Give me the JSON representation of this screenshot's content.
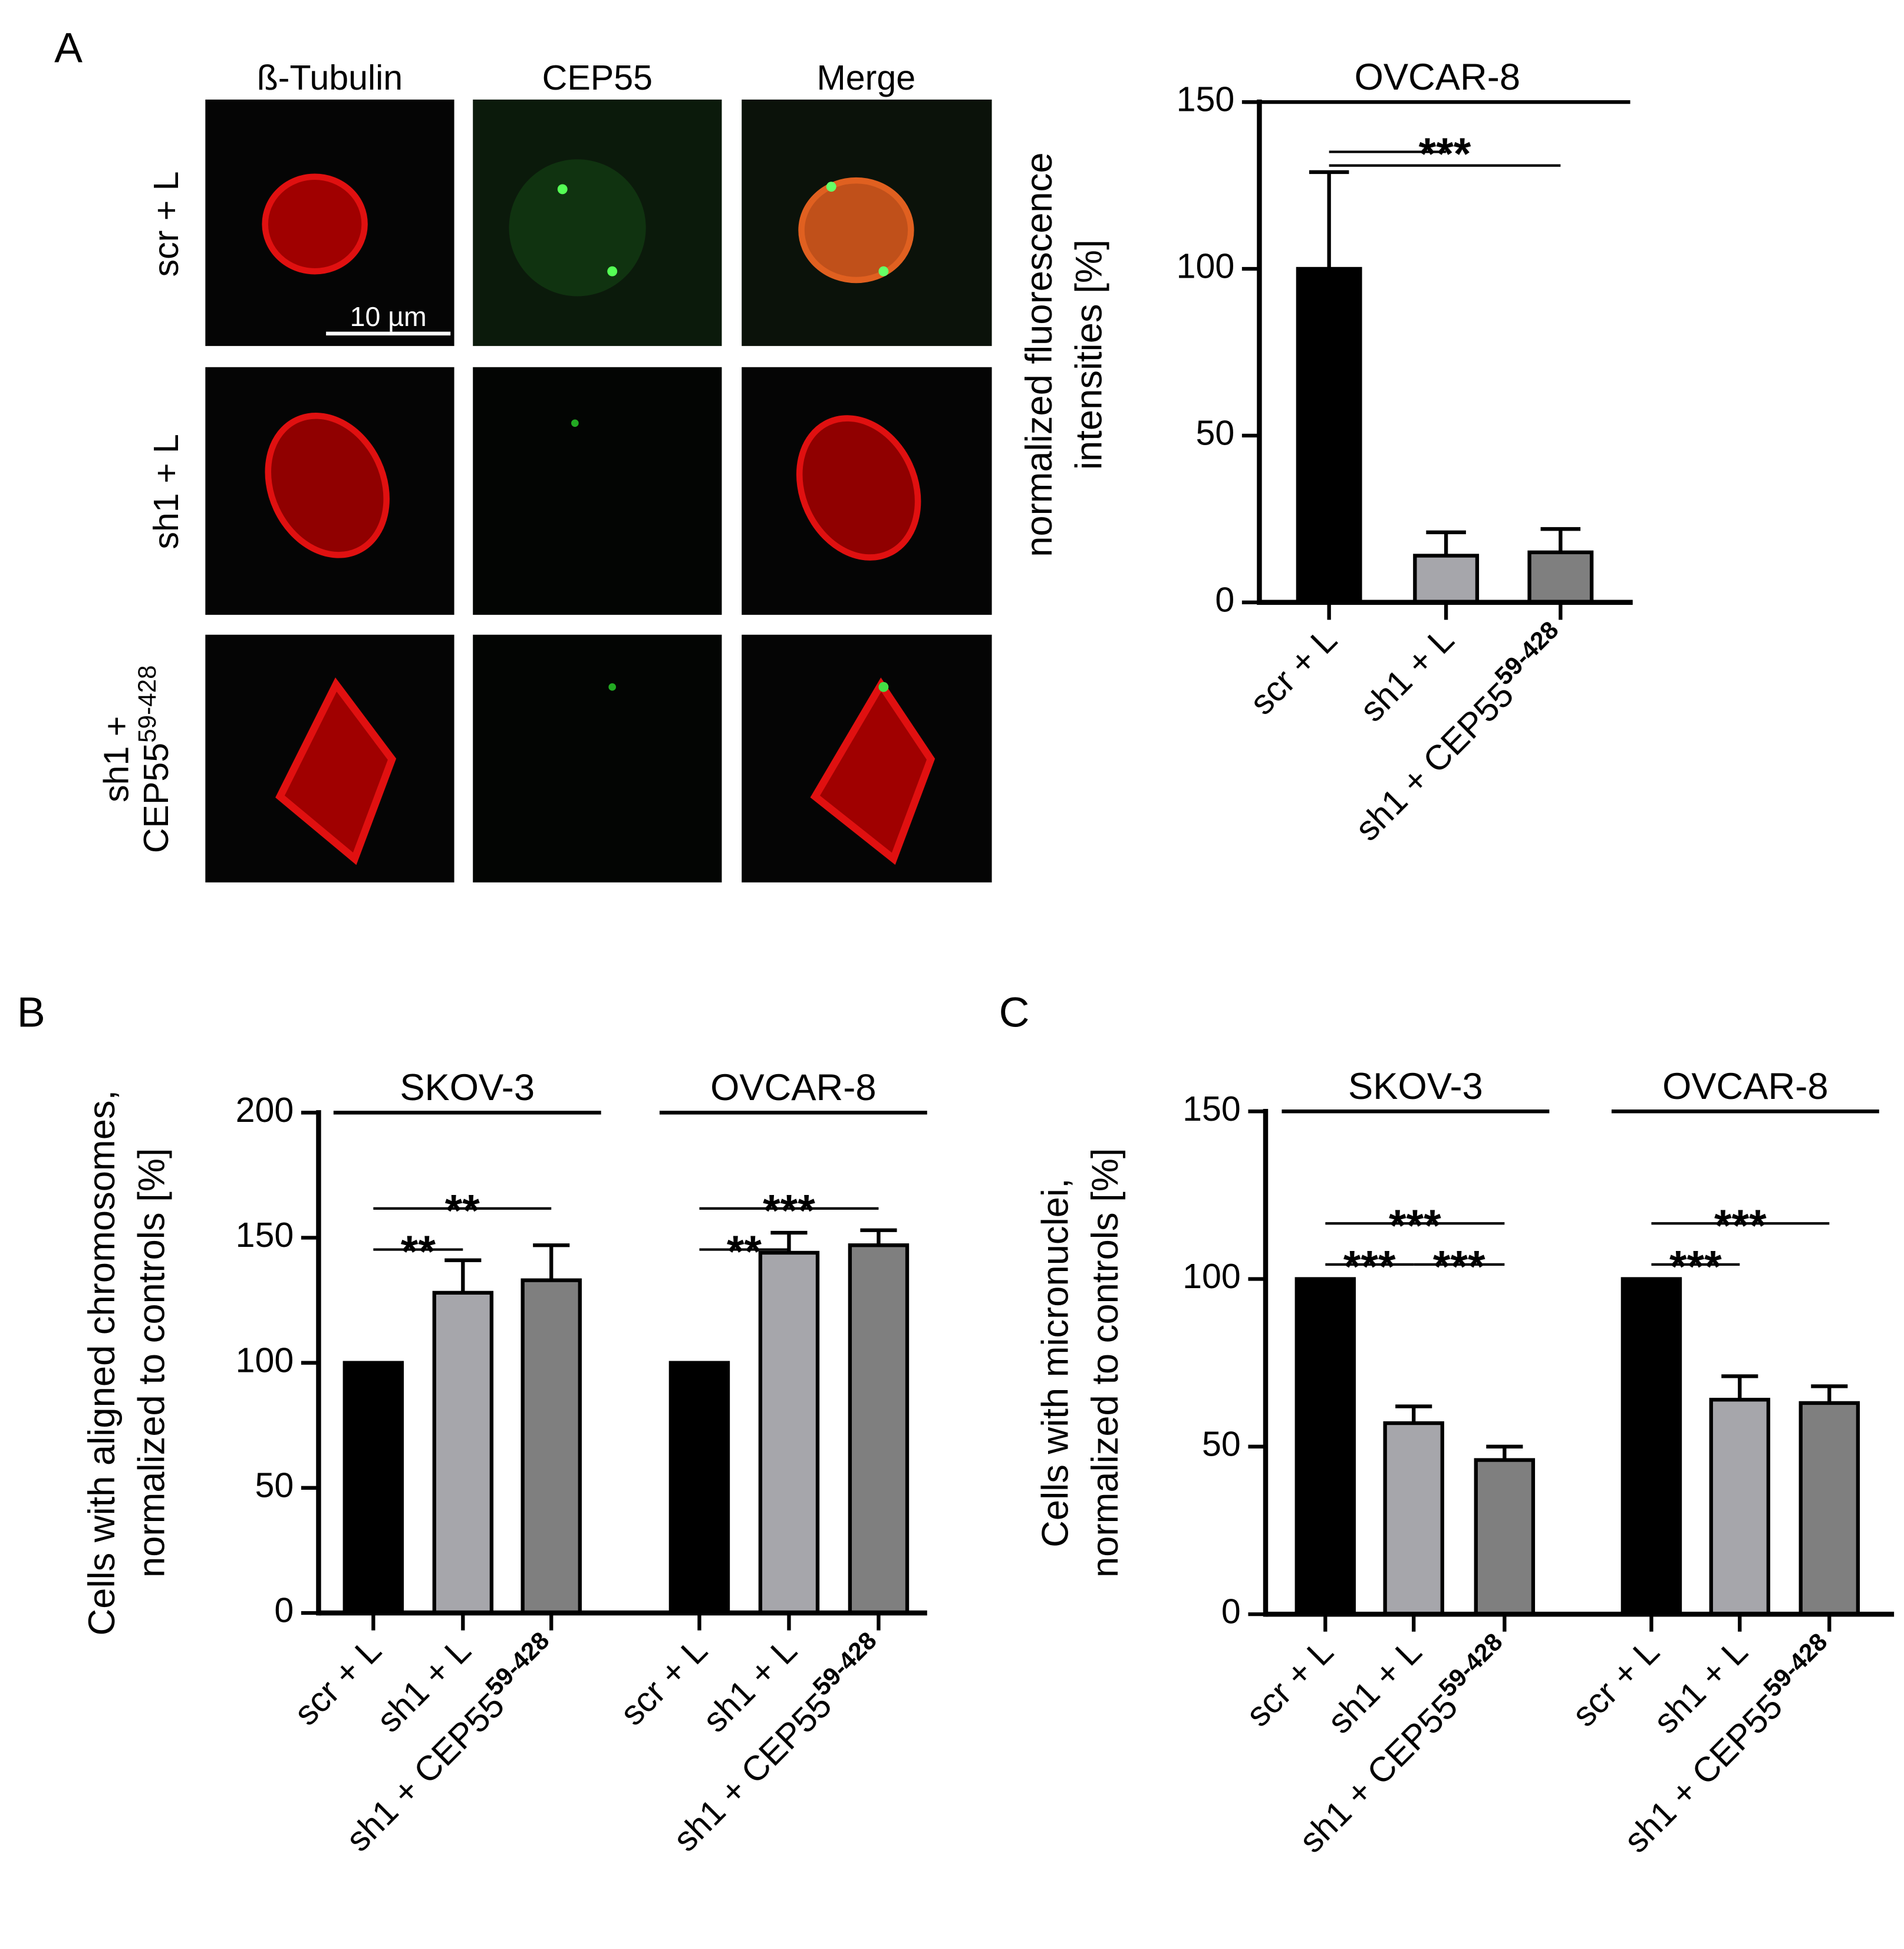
{
  "figure": {
    "panels": [
      "A",
      "B",
      "C"
    ],
    "microscopy": {
      "columns": [
        "ß-Tubulin",
        "CEP55",
        "Merge"
      ],
      "rows": [
        [
          "scr + L"
        ],
        [
          "sh1 + L"
        ],
        [
          "sh1 +",
          "CEP55"
        ]
      ],
      "row_superscript": "59-428",
      "scale_bar": "10 µm"
    }
  },
  "chart_data": [
    {
      "type": "bar",
      "y_label": [
        "normalized fluorescence",
        "intensities [%]"
      ],
      "categories": [
        "scr + L",
        "sh1 + L",
        "sh1 + CEP55"
      ],
      "category_superscripts": [
        null,
        null,
        "59-428"
      ],
      "colors": [
        "#000000",
        "#a6a6ab",
        "#7f7f7f"
      ],
      "ylim": [
        0,
        150
      ],
      "yticks": [
        0,
        50,
        100,
        150
      ],
      "groups": [
        {
          "name": "OVCAR-8",
          "values": [
            100,
            14,
            15
          ],
          "errors": [
            29,
            7,
            7
          ],
          "comparisons": [
            [
              {
                "label": "***",
                "pairs": [
                  [
                    0,
                    1
                  ],
                  [
                    0,
                    2
                  ]
                ]
              }
            ]
          ]
        }
      ]
    },
    {
      "type": "bar",
      "y_label": [
        "Cells with aligned chromosomes,",
        "normalized to controls [%]"
      ],
      "categories": [
        "scr + L",
        "sh1 + L",
        "sh1 + CEP55"
      ],
      "category_superscripts": [
        null,
        null,
        "59-428"
      ],
      "colors": [
        "#000000",
        "#a6a6ab",
        "#7f7f7f"
      ],
      "ylim": [
        0,
        200
      ],
      "yticks": [
        0,
        50,
        100,
        150,
        200
      ],
      "groups": [
        {
          "name": "SKOV-3",
          "values": [
            100,
            128,
            133
          ],
          "errors": [
            null,
            13,
            14
          ],
          "comparisons": [
            [
              {
                "label": "**",
                "pairs": [
                  [
                    0,
                    1
                  ]
                ]
              }
            ],
            [
              {
                "label": "**",
                "pairs": [
                  [
                    0,
                    2
                  ]
                ]
              }
            ]
          ]
        },
        {
          "name": "OVCAR-8",
          "values": [
            100,
            144,
            147
          ],
          "errors": [
            null,
            8,
            6
          ],
          "comparisons": [
            [
              {
                "label": "**",
                "pairs": [
                  [
                    0,
                    1
                  ]
                ]
              }
            ],
            [
              {
                "label": "***",
                "pairs": [
                  [
                    0,
                    2
                  ]
                ]
              }
            ]
          ]
        }
      ]
    },
    {
      "type": "bar",
      "y_label": [
        "Cells with micronuclei,",
        "normalized to controls [%]"
      ],
      "categories": [
        "scr + L",
        "sh1 + L",
        "sh1 + CEP55"
      ],
      "category_superscripts": [
        null,
        null,
        "59-428"
      ],
      "colors": [
        "#000000",
        "#a6a6ab",
        "#7f7f7f"
      ],
      "ylim": [
        0,
        150
      ],
      "yticks": [
        0,
        50,
        100,
        150
      ],
      "groups": [
        {
          "name": "SKOV-3",
          "values": [
            100,
            57,
            46
          ],
          "errors": [
            null,
            5,
            4
          ],
          "comparisons": [
            [
              {
                "label": "***",
                "pairs": [
                  [
                    0,
                    1
                  ]
                ]
              },
              {
                "label": "***",
                "pairs": [
                  [
                    1,
                    2
                  ]
                ]
              }
            ],
            [
              {
                "label": "***",
                "pairs": [
                  [
                    0,
                    2
                  ]
                ]
              }
            ]
          ]
        },
        {
          "name": "OVCAR-8",
          "values": [
            100,
            64,
            63
          ],
          "errors": [
            null,
            7,
            5
          ],
          "comparisons": [
            [
              {
                "label": "***",
                "pairs": [
                  [
                    0,
                    1
                  ]
                ]
              }
            ],
            [
              {
                "label": "***",
                "pairs": [
                  [
                    0,
                    2
                  ]
                ]
              }
            ]
          ]
        }
      ]
    }
  ]
}
